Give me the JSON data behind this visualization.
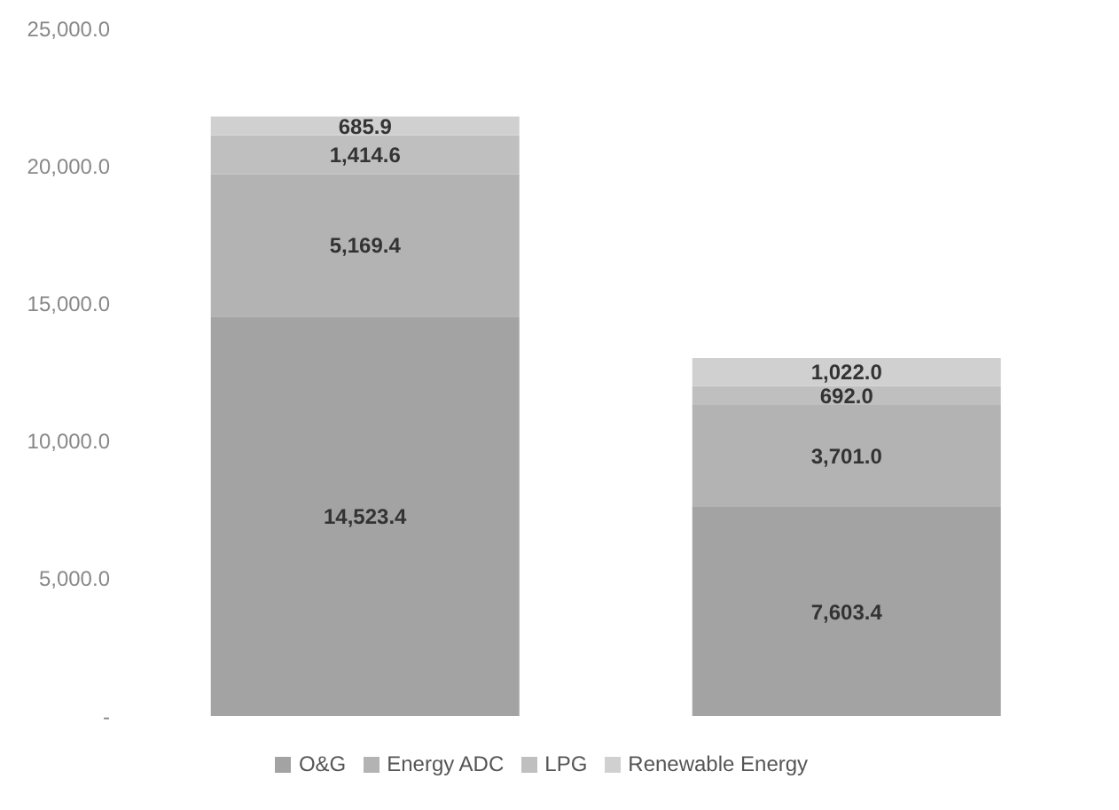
{
  "chart_data": {
    "type": "bar",
    "stacked": true,
    "categories": [
      null,
      null
    ],
    "series": [
      {
        "name": "O&G",
        "color": "#a3a3a3",
        "values": [
          14523.4,
          7603.4
        ],
        "value_labels": [
          "14,523.4",
          "7,603.4"
        ]
      },
      {
        "name": "Energy ADC",
        "color": "#b3b3b3",
        "values": [
          5169.4,
          3701.0
        ],
        "value_labels": [
          "5,169.4",
          "3,701.0"
        ]
      },
      {
        "name": "LPG",
        "color": "#bfbfbf",
        "values": [
          1414.6,
          692.0
        ],
        "value_labels": [
          "1,414.6",
          "692.0"
        ]
      },
      {
        "name": "Renewable Energy",
        "color": "#d0d0d0",
        "values": [
          685.9,
          1022.0
        ],
        "value_labels": [
          "685.9",
          "1,022.0"
        ]
      }
    ],
    "ylim": [
      0,
      25000
    ],
    "yticks": [
      {
        "value": 0,
        "label": "-"
      },
      {
        "value": 5000,
        "label": "5,000.0"
      },
      {
        "value": 10000,
        "label": "10,000.0"
      },
      {
        "value": 15000,
        "label": "15,000.0"
      },
      {
        "value": 20000,
        "label": "20,000.0"
      },
      {
        "value": 25000,
        "label": "25,000.0"
      }
    ],
    "grid": false,
    "legend": "bottom"
  }
}
